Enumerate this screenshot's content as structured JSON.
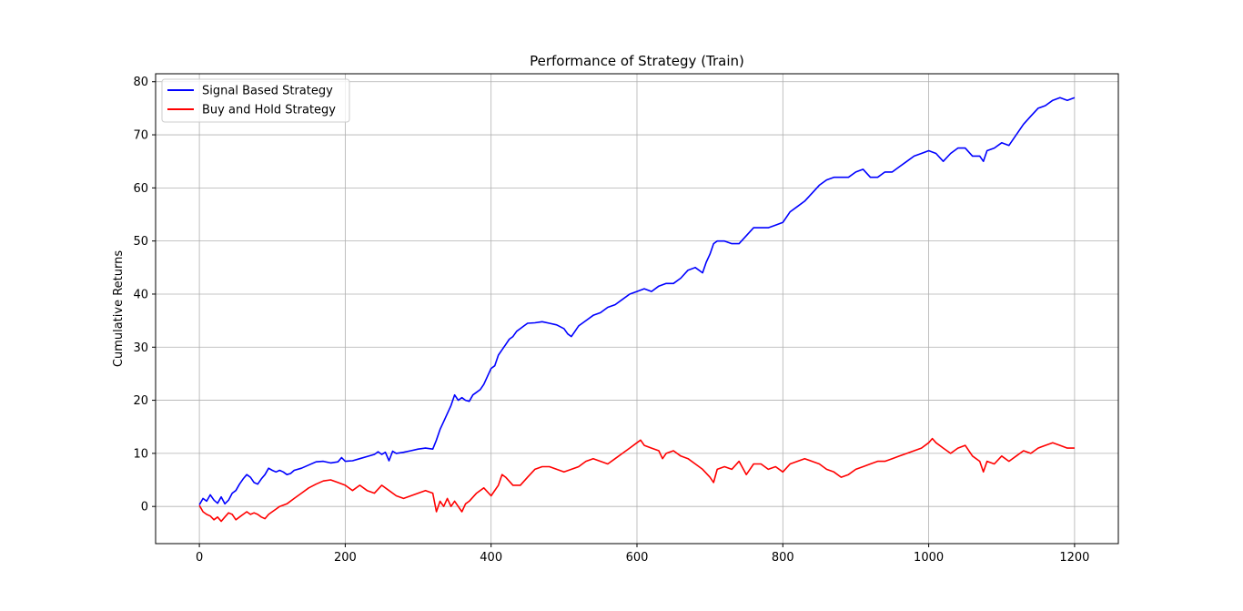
{
  "chart_data": {
    "type": "line",
    "title": "Performance of Strategy (Train)",
    "xlabel": "",
    "ylabel": "Cumulative Returns",
    "xlim": [
      -60,
      1260
    ],
    "ylim": [
      -7,
      81.5
    ],
    "xticks": [
      0,
      200,
      400,
      600,
      800,
      1000,
      1200
    ],
    "yticks": [
      0,
      10,
      20,
      30,
      40,
      50,
      60,
      70,
      80
    ],
    "grid": true,
    "legend_position": "top-left",
    "series": [
      {
        "name": "Signal Based Strategy",
        "color": "#0000ff",
        "points": [
          [
            0,
            0.3
          ],
          [
            5,
            1.5
          ],
          [
            10,
            1.0
          ],
          [
            15,
            2.2
          ],
          [
            20,
            1.2
          ],
          [
            25,
            0.6
          ],
          [
            30,
            1.8
          ],
          [
            35,
            0.5
          ],
          [
            40,
            1.2
          ],
          [
            45,
            2.5
          ],
          [
            50,
            3.0
          ],
          [
            55,
            4.2
          ],
          [
            60,
            5.2
          ],
          [
            65,
            6.0
          ],
          [
            70,
            5.5
          ],
          [
            75,
            4.5
          ],
          [
            80,
            4.2
          ],
          [
            85,
            5.2
          ],
          [
            90,
            6.0
          ],
          [
            95,
            7.2
          ],
          [
            100,
            6.8
          ],
          [
            105,
            6.5
          ],
          [
            110,
            6.8
          ],
          [
            115,
            6.5
          ],
          [
            120,
            6.0
          ],
          [
            125,
            6.2
          ],
          [
            130,
            6.8
          ],
          [
            140,
            7.2
          ],
          [
            150,
            7.8
          ],
          [
            160,
            8.4
          ],
          [
            170,
            8.5
          ],
          [
            180,
            8.2
          ],
          [
            190,
            8.4
          ],
          [
            195,
            9.2
          ],
          [
            200,
            8.5
          ],
          [
            210,
            8.6
          ],
          [
            220,
            9.0
          ],
          [
            230,
            9.4
          ],
          [
            240,
            9.8
          ],
          [
            245,
            10.3
          ],
          [
            250,
            9.8
          ],
          [
            255,
            10.2
          ],
          [
            260,
            8.6
          ],
          [
            265,
            10.4
          ],
          [
            270,
            10.0
          ],
          [
            280,
            10.2
          ],
          [
            290,
            10.5
          ],
          [
            300,
            10.8
          ],
          [
            310,
            11.0
          ],
          [
            320,
            10.8
          ],
          [
            325,
            12.5
          ],
          [
            330,
            14.5
          ],
          [
            335,
            16.0
          ],
          [
            340,
            17.5
          ],
          [
            345,
            19.0
          ],
          [
            350,
            21.0
          ],
          [
            355,
            20.0
          ],
          [
            360,
            20.5
          ],
          [
            365,
            20.0
          ],
          [
            370,
            19.8
          ],
          [
            375,
            21.0
          ],
          [
            380,
            21.5
          ],
          [
            385,
            22.0
          ],
          [
            390,
            23.0
          ],
          [
            395,
            24.5
          ],
          [
            400,
            26.0
          ],
          [
            405,
            26.5
          ],
          [
            410,
            28.5
          ],
          [
            415,
            29.5
          ],
          [
            420,
            30.5
          ],
          [
            425,
            31.5
          ],
          [
            430,
            32.0
          ],
          [
            435,
            33.0
          ],
          [
            440,
            33.5
          ],
          [
            445,
            34.0
          ],
          [
            450,
            34.5
          ],
          [
            460,
            34.6
          ],
          [
            470,
            34.8
          ],
          [
            480,
            34.5
          ],
          [
            490,
            34.2
          ],
          [
            500,
            33.5
          ],
          [
            505,
            32.5
          ],
          [
            510,
            32.0
          ],
          [
            515,
            33.0
          ],
          [
            520,
            34.0
          ],
          [
            525,
            34.5
          ],
          [
            530,
            35.0
          ],
          [
            540,
            36.0
          ],
          [
            550,
            36.5
          ],
          [
            560,
            37.5
          ],
          [
            570,
            38.0
          ],
          [
            580,
            39.0
          ],
          [
            590,
            40.0
          ],
          [
            600,
            40.5
          ],
          [
            610,
            41.0
          ],
          [
            620,
            40.5
          ],
          [
            630,
            41.5
          ],
          [
            640,
            42.0
          ],
          [
            650,
            42.0
          ],
          [
            660,
            43.0
          ],
          [
            670,
            44.5
          ],
          [
            680,
            45.0
          ],
          [
            690,
            44.0
          ],
          [
            695,
            46.0
          ],
          [
            700,
            47.5
          ],
          [
            705,
            49.5
          ],
          [
            710,
            50.0
          ],
          [
            720,
            50.0
          ],
          [
            730,
            49.5
          ],
          [
            740,
            49.5
          ],
          [
            750,
            51.0
          ],
          [
            760,
            52.5
          ],
          [
            770,
            52.5
          ],
          [
            780,
            52.5
          ],
          [
            790,
            53.0
          ],
          [
            800,
            53.5
          ],
          [
            810,
            55.5
          ],
          [
            820,
            56.5
          ],
          [
            830,
            57.5
          ],
          [
            840,
            59.0
          ],
          [
            850,
            60.5
          ],
          [
            860,
            61.5
          ],
          [
            870,
            62.0
          ],
          [
            880,
            62.0
          ],
          [
            890,
            62.0
          ],
          [
            900,
            63.0
          ],
          [
            910,
            63.5
          ],
          [
            920,
            62.0
          ],
          [
            930,
            62.0
          ],
          [
            940,
            63.0
          ],
          [
            950,
            63.0
          ],
          [
            960,
            64.0
          ],
          [
            970,
            65.0
          ],
          [
            980,
            66.0
          ],
          [
            990,
            66.5
          ],
          [
            1000,
            67.0
          ],
          [
            1010,
            66.5
          ],
          [
            1020,
            65.0
          ],
          [
            1030,
            66.5
          ],
          [
            1040,
            67.5
          ],
          [
            1050,
            67.5
          ],
          [
            1060,
            66.0
          ],
          [
            1070,
            66.0
          ],
          [
            1075,
            65.0
          ],
          [
            1080,
            67.0
          ],
          [
            1090,
            67.5
          ],
          [
            1100,
            68.5
          ],
          [
            1110,
            68.0
          ],
          [
            1120,
            70.0
          ],
          [
            1130,
            72.0
          ],
          [
            1140,
            73.5
          ],
          [
            1150,
            75.0
          ],
          [
            1160,
            75.5
          ],
          [
            1170,
            76.5
          ],
          [
            1180,
            77.0
          ],
          [
            1190,
            76.5
          ],
          [
            1200,
            77.0
          ]
        ]
      },
      {
        "name": "Buy and Hold Strategy",
        "color": "#ff0000",
        "points": [
          [
            0,
            0.2
          ],
          [
            5,
            -1.0
          ],
          [
            10,
            -1.5
          ],
          [
            15,
            -1.8
          ],
          [
            20,
            -2.5
          ],
          [
            25,
            -2.0
          ],
          [
            30,
            -2.8
          ],
          [
            35,
            -2.0
          ],
          [
            40,
            -1.2
          ],
          [
            45,
            -1.5
          ],
          [
            50,
            -2.5
          ],
          [
            55,
            -2.0
          ],
          [
            60,
            -1.5
          ],
          [
            65,
            -1.0
          ],
          [
            70,
            -1.5
          ],
          [
            75,
            -1.2
          ],
          [
            80,
            -1.5
          ],
          [
            85,
            -2.0
          ],
          [
            90,
            -2.3
          ],
          [
            95,
            -1.5
          ],
          [
            100,
            -1.0
          ],
          [
            105,
            -0.5
          ],
          [
            110,
            0.0
          ],
          [
            120,
            0.5
          ],
          [
            130,
            1.5
          ],
          [
            140,
            2.5
          ],
          [
            150,
            3.5
          ],
          [
            160,
            4.2
          ],
          [
            170,
            4.8
          ],
          [
            180,
            5.0
          ],
          [
            190,
            4.5
          ],
          [
            200,
            4.0
          ],
          [
            210,
            3.0
          ],
          [
            220,
            4.0
          ],
          [
            230,
            3.0
          ],
          [
            240,
            2.5
          ],
          [
            250,
            4.0
          ],
          [
            260,
            3.0
          ],
          [
            270,
            2.0
          ],
          [
            280,
            1.5
          ],
          [
            290,
            2.0
          ],
          [
            300,
            2.5
          ],
          [
            310,
            3.0
          ],
          [
            320,
            2.5
          ],
          [
            325,
            -1.0
          ],
          [
            330,
            1.0
          ],
          [
            335,
            0.0
          ],
          [
            340,
            1.5
          ],
          [
            345,
            0.0
          ],
          [
            350,
            1.0
          ],
          [
            355,
            0.0
          ],
          [
            360,
            -1.0
          ],
          [
            365,
            0.5
          ],
          [
            370,
            1.0
          ],
          [
            380,
            2.5
          ],
          [
            390,
            3.5
          ],
          [
            400,
            2.0
          ],
          [
            410,
            4.0
          ],
          [
            415,
            6.0
          ],
          [
            420,
            5.5
          ],
          [
            430,
            4.0
          ],
          [
            440,
            4.0
          ],
          [
            450,
            5.5
          ],
          [
            460,
            7.0
          ],
          [
            470,
            7.5
          ],
          [
            480,
            7.5
          ],
          [
            490,
            7.0
          ],
          [
            500,
            6.5
          ],
          [
            510,
            7.0
          ],
          [
            520,
            7.5
          ],
          [
            530,
            8.5
          ],
          [
            540,
            9.0
          ],
          [
            550,
            8.5
          ],
          [
            560,
            8.0
          ],
          [
            570,
            9.0
          ],
          [
            580,
            10.0
          ],
          [
            590,
            11.0
          ],
          [
            600,
            12.0
          ],
          [
            605,
            12.5
          ],
          [
            610,
            11.5
          ],
          [
            620,
            11.0
          ],
          [
            630,
            10.5
          ],
          [
            635,
            9.0
          ],
          [
            640,
            10.0
          ],
          [
            650,
            10.5
          ],
          [
            660,
            9.5
          ],
          [
            670,
            9.0
          ],
          [
            680,
            8.0
          ],
          [
            690,
            7.0
          ],
          [
            700,
            5.5
          ],
          [
            705,
            4.5
          ],
          [
            710,
            7.0
          ],
          [
            720,
            7.5
          ],
          [
            730,
            7.0
          ],
          [
            740,
            8.5
          ],
          [
            750,
            6.0
          ],
          [
            760,
            8.0
          ],
          [
            770,
            8.0
          ],
          [
            780,
            7.0
          ],
          [
            790,
            7.5
          ],
          [
            800,
            6.5
          ],
          [
            810,
            8.0
          ],
          [
            820,
            8.5
          ],
          [
            830,
            9.0
          ],
          [
            840,
            8.5
          ],
          [
            850,
            8.0
          ],
          [
            860,
            7.0
          ],
          [
            870,
            6.5
          ],
          [
            880,
            5.5
          ],
          [
            890,
            6.0
          ],
          [
            900,
            7.0
          ],
          [
            910,
            7.5
          ],
          [
            920,
            8.0
          ],
          [
            930,
            8.5
          ],
          [
            940,
            8.5
          ],
          [
            950,
            9.0
          ],
          [
            960,
            9.5
          ],
          [
            970,
            10.0
          ],
          [
            980,
            10.5
          ],
          [
            990,
            11.0
          ],
          [
            1000,
            12.0
          ],
          [
            1005,
            12.8
          ],
          [
            1010,
            12.0
          ],
          [
            1020,
            11.0
          ],
          [
            1030,
            10.0
          ],
          [
            1040,
            11.0
          ],
          [
            1050,
            11.5
          ],
          [
            1060,
            9.5
          ],
          [
            1070,
            8.5
          ],
          [
            1075,
            6.5
          ],
          [
            1080,
            8.5
          ],
          [
            1090,
            8.0
          ],
          [
            1100,
            9.5
          ],
          [
            1110,
            8.5
          ],
          [
            1120,
            9.5
          ],
          [
            1130,
            10.5
          ],
          [
            1140,
            10.0
          ],
          [
            1150,
            11.0
          ],
          [
            1160,
            11.5
          ],
          [
            1170,
            12.0
          ],
          [
            1180,
            11.5
          ],
          [
            1190,
            11.0
          ],
          [
            1200,
            11.0
          ]
        ]
      }
    ]
  }
}
